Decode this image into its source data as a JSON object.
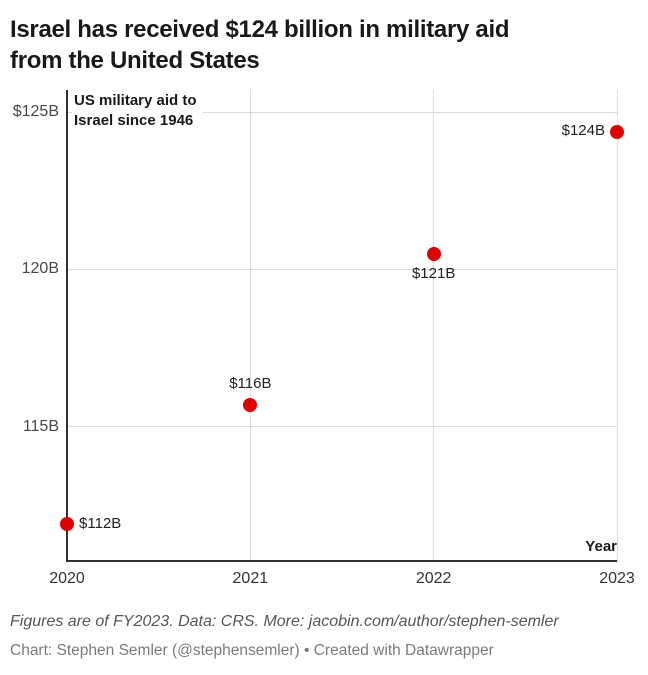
{
  "title": "Israel has received $124 billion in military aid\nfrom the United States",
  "chart_data": {
    "type": "scatter",
    "annotation": "US military aid to\nIsrael since 1946",
    "x": [
      2020,
      2021,
      2022,
      2023
    ],
    "values": [
      112,
      116,
      121,
      124
    ],
    "plotted_values": [
      111.9,
      115.7,
      120.5,
      124.35
    ],
    "point_labels": [
      "$112B",
      "$116B",
      "$121B",
      "$124B"
    ],
    "point_label_placement": [
      "right",
      "above",
      "below",
      "left"
    ],
    "x_tick_labels": [
      "2020",
      "2021",
      "2022",
      "2023"
    ],
    "y_ticks": [
      {
        "value": 125,
        "label": "$125B"
      },
      {
        "value": 120,
        "label": "120B"
      },
      {
        "value": 115,
        "label": "115B"
      }
    ],
    "xlabel": "Year",
    "xlim": [
      2020,
      2023
    ],
    "ylim": [
      110.7,
      125.7
    ],
    "grid": true,
    "legend": "none",
    "point_color": "#e10000"
  },
  "footer": {
    "notes": "Figures are of FY2023. Data: CRS. More: jacobin.com/author/stephen-semler",
    "byline": "Chart: Stephen Semler (@stephensemler) • Created with Datawrapper"
  },
  "colors": {
    "accent": "#e10000",
    "title_text": "#191919",
    "axis_line": "#2f2f2f",
    "gridline": "#dcdcdc",
    "y_tick_label": "#494949",
    "x_tick_label": "#333333",
    "point_label": "#222222",
    "notes_text": "#565656",
    "byline_text": "#7b7b7b",
    "background": "#ffffff"
  }
}
